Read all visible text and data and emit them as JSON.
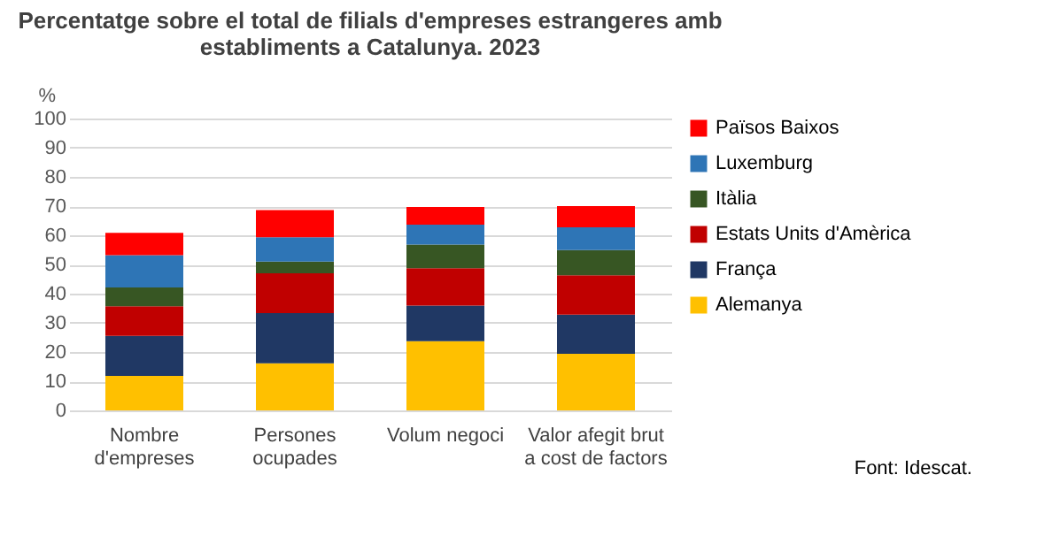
{
  "chart_data": {
    "type": "bar",
    "stacked": true,
    "title": "Percentatge sobre el total de filials d'empreses estrangeres amb establiments a Catalunya. 2023",
    "ylabel": "%",
    "categories": [
      "Nombre d'empreses",
      "Persones ocupades",
      "Volum negoci",
      "Valor afegit brut a cost de factors"
    ],
    "series": [
      {
        "name": "Alemanya",
        "color": "#ffc000",
        "values": [
          11.8,
          16.1,
          23.7,
          19.4
        ]
      },
      {
        "name": "França",
        "color": "#203864",
        "values": [
          13.7,
          17.2,
          12.2,
          13.4
        ]
      },
      {
        "name": "Estats Units d'Amèrica",
        "color": "#c00000",
        "values": [
          10.2,
          13.7,
          12.8,
          13.5
        ]
      },
      {
        "name": "Itàlia",
        "color": "#375623",
        "values": [
          6.4,
          4.0,
          8.1,
          8.6
        ]
      },
      {
        "name": "Luxemburg",
        "color": "#2e75b6",
        "values": [
          11.1,
          8.3,
          6.8,
          7.8
        ]
      },
      {
        "name": "Països Baixos",
        "color": "#ff0000",
        "values": [
          7.6,
          9.3,
          6.1,
          7.3
        ]
      }
    ],
    "ylim": [
      0,
      100
    ],
    "yticks": [
      0,
      10,
      20,
      30,
      40,
      50,
      60,
      70,
      80,
      90,
      100
    ],
    "grid": "y",
    "legend": "right",
    "annotations": [
      "Font: Idescat."
    ]
  }
}
